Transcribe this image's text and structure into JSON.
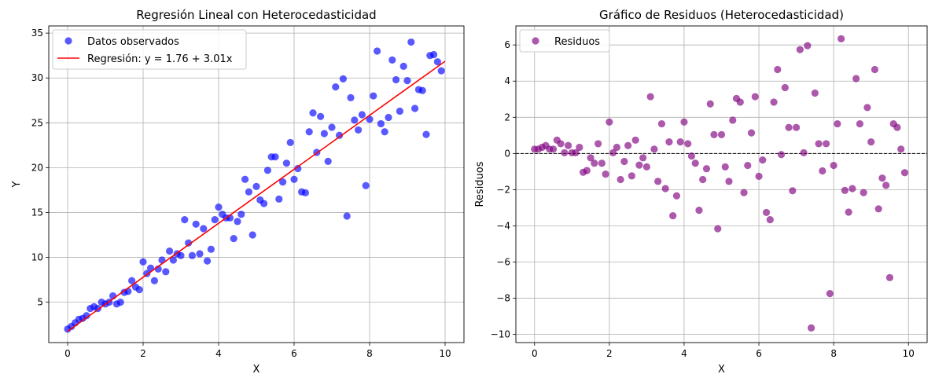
{
  "chart_data": [
    {
      "type": "scatter",
      "title": "Regresión Lineal con Heterocedasticidad",
      "xlabel": "X",
      "ylabel": "Y",
      "xlim": [
        -0.5,
        10.5
      ],
      "ylim": [
        0.5,
        35.8
      ],
      "xticks": [
        "0",
        "2",
        "4",
        "6",
        "8",
        "10"
      ],
      "xtick_values": [
        0,
        2,
        4,
        6,
        8,
        10
      ],
      "yticks": [
        "5",
        "10",
        "15",
        "20",
        "25",
        "30",
        "35"
      ],
      "ytick_values": [
        5,
        10,
        15,
        20,
        25,
        30,
        35
      ],
      "grid": true,
      "legend_position": "top-left",
      "series": [
        {
          "name": "Datos observados",
          "kind": "scatter",
          "color": "#0000ff",
          "opacity": 0.65,
          "points": [
            [
              0.0,
              2.0
            ],
            [
              0.1,
              2.3
            ],
            [
              0.2,
              2.7
            ],
            [
              0.3,
              3.1
            ],
            [
              0.4,
              3.2
            ],
            [
              0.5,
              3.5
            ],
            [
              0.6,
              4.3
            ],
            [
              0.7,
              4.5
            ],
            [
              0.8,
              4.3
            ],
            [
              0.9,
              5.0
            ],
            [
              1.0,
              4.8
            ],
            [
              1.1,
              5.0
            ],
            [
              1.2,
              5.7
            ],
            [
              1.3,
              4.8
            ],
            [
              1.4,
              5.0
            ],
            [
              1.5,
              6.1
            ],
            [
              1.6,
              6.2
            ],
            [
              1.7,
              7.4
            ],
            [
              1.8,
              6.7
            ],
            [
              1.9,
              6.4
            ],
            [
              2.0,
              9.5
            ],
            [
              2.1,
              8.2
            ],
            [
              2.2,
              8.8
            ],
            [
              2.3,
              7.4
            ],
            [
              2.4,
              8.7
            ],
            [
              2.5,
              9.7
            ],
            [
              2.6,
              8.4
            ],
            [
              2.7,
              10.7
            ],
            [
              2.8,
              9.7
            ],
            [
              2.9,
              10.4
            ],
            [
              3.0,
              10.2
            ],
            [
              3.1,
              14.2
            ],
            [
              3.2,
              11.6
            ],
            [
              3.3,
              10.2
            ],
            [
              3.4,
              13.7
            ],
            [
              3.5,
              10.4
            ],
            [
              3.6,
              13.2
            ],
            [
              3.7,
              9.6
            ],
            [
              3.8,
              10.9
            ],
            [
              3.9,
              14.2
            ],
            [
              4.0,
              15.6
            ],
            [
              4.1,
              14.8
            ],
            [
              4.2,
              14.4
            ],
            [
              4.3,
              14.4
            ],
            [
              4.4,
              12.1
            ],
            [
              4.5,
              14.0
            ],
            [
              4.6,
              14.8
            ],
            [
              4.7,
              18.7
            ],
            [
              4.8,
              17.3
            ],
            [
              4.9,
              12.5
            ],
            [
              5.0,
              17.9
            ],
            [
              5.1,
              16.4
            ],
            [
              5.2,
              16.0
            ],
            [
              5.3,
              19.7
            ],
            [
              5.4,
              21.2
            ],
            [
              5.5,
              21.2
            ],
            [
              5.6,
              16.5
            ],
            [
              5.7,
              18.4
            ],
            [
              5.8,
              20.5
            ],
            [
              5.9,
              22.8
            ],
            [
              6.0,
              18.7
            ],
            [
              6.1,
              19.9
            ],
            [
              6.2,
              17.3
            ],
            [
              6.3,
              17.2
            ],
            [
              6.4,
              24.0
            ],
            [
              6.5,
              26.1
            ],
            [
              6.6,
              21.7
            ],
            [
              6.7,
              25.7
            ],
            [
              6.8,
              23.8
            ],
            [
              6.9,
              20.7
            ],
            [
              7.0,
              24.5
            ],
            [
              7.1,
              29.0
            ],
            [
              7.2,
              23.6
            ],
            [
              7.3,
              29.9
            ],
            [
              7.4,
              14.6
            ],
            [
              7.5,
              27.8
            ],
            [
              7.6,
              25.3
            ],
            [
              7.7,
              24.2
            ],
            [
              7.8,
              25.9
            ],
            [
              7.9,
              18.0
            ],
            [
              8.0,
              25.4
            ],
            [
              8.1,
              28.0
            ],
            [
              8.2,
              33.0
            ],
            [
              8.3,
              24.9
            ],
            [
              8.4,
              24.0
            ],
            [
              8.5,
              25.6
            ],
            [
              8.6,
              32.0
            ],
            [
              8.7,
              29.8
            ],
            [
              8.8,
              26.3
            ],
            [
              8.9,
              31.3
            ],
            [
              9.0,
              29.7
            ],
            [
              9.1,
              34.0
            ],
            [
              9.2,
              26.6
            ],
            [
              9.3,
              28.7
            ],
            [
              9.4,
              28.6
            ],
            [
              9.5,
              23.7
            ],
            [
              9.6,
              32.5
            ],
            [
              9.7,
              32.6
            ],
            [
              9.8,
              31.8
            ],
            [
              9.9,
              30.8
            ]
          ]
        },
        {
          "name": "Regresión: y = 1.76 + 3.01x",
          "kind": "line",
          "color": "#ff0000",
          "x": [
            0,
            10
          ],
          "y": [
            1.76,
            31.86
          ]
        }
      ]
    },
    {
      "type": "scatter",
      "title": "Gráfico de Residuos (Heterocedasticidad)",
      "xlabel": "X",
      "ylabel": "Residuos",
      "xlim": [
        -0.5,
        10.5
      ],
      "ylim": [
        -10.45,
        7.05
      ],
      "xticks": [
        "0",
        "2",
        "4",
        "6",
        "8",
        "10"
      ],
      "xtick_values": [
        0,
        2,
        4,
        6,
        8,
        10
      ],
      "yticks": [
        "−10",
        "−8",
        "−6",
        "−4",
        "−2",
        "0",
        "2",
        "4",
        "6"
      ],
      "ytick_values": [
        -10,
        -8,
        -6,
        -4,
        -2,
        0,
        2,
        4,
        6
      ],
      "grid": true,
      "legend_position": "top-left",
      "reference_line": 0,
      "series": [
        {
          "name": "Residuos",
          "kind": "scatter",
          "color": "#800080",
          "opacity": 0.65,
          "points": [
            [
              0.0,
              0.24
            ],
            [
              0.1,
              0.24
            ],
            [
              0.2,
              0.34
            ],
            [
              0.3,
              0.44
            ],
            [
              0.4,
              0.24
            ],
            [
              0.5,
              0.24
            ],
            [
              0.6,
              0.74
            ],
            [
              0.7,
              0.54
            ],
            [
              0.8,
              0.04
            ],
            [
              0.9,
              0.44
            ],
            [
              1.0,
              0.04
            ],
            [
              1.1,
              0.04
            ],
            [
              1.2,
              0.34
            ],
            [
              1.3,
              -1.04
            ],
            [
              1.4,
              -0.94
            ],
            [
              1.5,
              -0.24
            ],
            [
              1.6,
              -0.54
            ],
            [
              1.7,
              0.54
            ],
            [
              1.8,
              -0.54
            ],
            [
              1.9,
              -1.14
            ],
            [
              2.0,
              1.74
            ],
            [
              2.1,
              0.04
            ],
            [
              2.2,
              0.34
            ],
            [
              2.3,
              -1.44
            ],
            [
              2.4,
              -0.44
            ],
            [
              2.5,
              0.44
            ],
            [
              2.6,
              -1.24
            ],
            [
              2.7,
              0.74
            ],
            [
              2.8,
              -0.64
            ],
            [
              2.9,
              -0.24
            ],
            [
              3.0,
              -0.74
            ],
            [
              3.1,
              3.14
            ],
            [
              3.2,
              0.24
            ],
            [
              3.3,
              -1.54
            ],
            [
              3.4,
              1.64
            ],
            [
              3.5,
              -1.94
            ],
            [
              3.6,
              0.64
            ],
            [
              3.7,
              -3.44
            ],
            [
              3.8,
              -2.34
            ],
            [
              3.9,
              0.64
            ],
            [
              4.0,
              1.74
            ],
            [
              4.1,
              0.54
            ],
            [
              4.2,
              -0.14
            ],
            [
              4.3,
              -0.54
            ],
            [
              4.4,
              -3.14
            ],
            [
              4.5,
              -1.44
            ],
            [
              4.6,
              -0.84
            ],
            [
              4.7,
              2.74
            ],
            [
              4.8,
              1.04
            ],
            [
              4.9,
              -4.16
            ],
            [
              5.0,
              1.04
            ],
            [
              5.1,
              -0.74
            ],
            [
              5.2,
              -1.54
            ],
            [
              5.3,
              1.84
            ],
            [
              5.4,
              3.04
            ],
            [
              5.5,
              2.84
            ],
            [
              5.6,
              -2.16
            ],
            [
              5.7,
              -0.66
            ],
            [
              5.8,
              1.14
            ],
            [
              5.9,
              3.14
            ],
            [
              6.0,
              -1.26
            ],
            [
              6.1,
              -0.36
            ],
            [
              6.2,
              -3.26
            ],
            [
              6.3,
              -3.66
            ],
            [
              6.4,
              2.84
            ],
            [
              6.5,
              4.64
            ],
            [
              6.6,
              -0.06
            ],
            [
              6.7,
              3.64
            ],
            [
              6.8,
              1.44
            ],
            [
              6.9,
              -2.06
            ],
            [
              7.0,
              1.44
            ],
            [
              7.1,
              5.74
            ],
            [
              7.2,
              0.04
            ],
            [
              7.3,
              5.96
            ],
            [
              7.4,
              -9.64
            ],
            [
              7.5,
              3.34
            ],
            [
              7.6,
              0.54
            ],
            [
              7.7,
              -0.96
            ],
            [
              7.8,
              0.54
            ],
            [
              7.9,
              -7.74
            ],
            [
              8.0,
              -0.66
            ],
            [
              8.1,
              1.64
            ],
            [
              8.2,
              6.34
            ],
            [
              8.3,
              -2.04
            ],
            [
              8.4,
              -3.24
            ],
            [
              8.5,
              -1.94
            ],
            [
              8.6,
              4.14
            ],
            [
              8.7,
              1.64
            ],
            [
              8.8,
              -2.16
            ],
            [
              8.9,
              2.54
            ],
            [
              9.0,
              0.64
            ],
            [
              9.1,
              4.64
            ],
            [
              9.2,
              -3.06
            ],
            [
              9.3,
              -1.36
            ],
            [
              9.4,
              -1.76
            ],
            [
              9.5,
              -6.86
            ],
            [
              9.6,
              1.64
            ],
            [
              9.7,
              1.44
            ],
            [
              9.8,
              0.24
            ],
            [
              9.9,
              -1.06
            ]
          ]
        }
      ]
    }
  ]
}
